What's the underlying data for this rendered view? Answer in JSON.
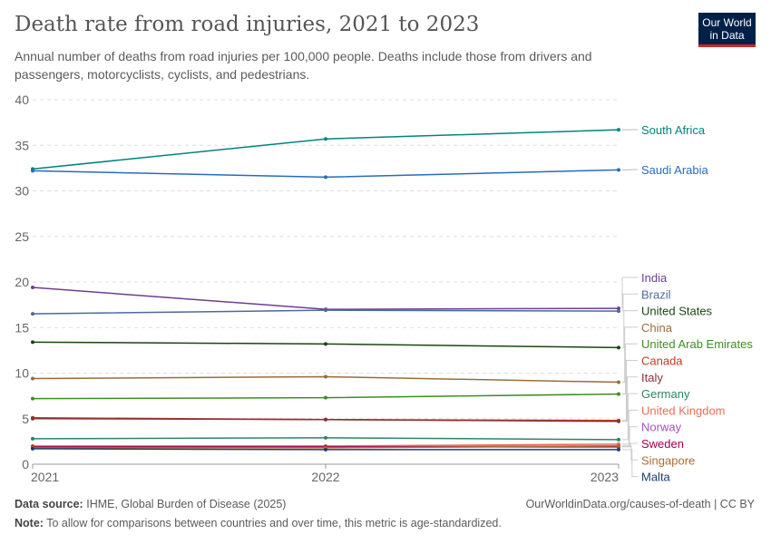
{
  "header": {
    "title": "Death rate from road injuries, 2021 to 2023",
    "subtitle": "Annual number of deaths from road injuries per 100,000 people. Deaths include those from drivers and passengers, motorcyclists, cyclists, and pedestrians.",
    "logo": "Our World in Data"
  },
  "footer": {
    "source_label": "Data source:",
    "source": "IHME, Global Burden of Disease (2025)",
    "url": "OurWorldinData.org/causes-of-death | CC BY",
    "note_label": "Note:",
    "note": "To allow for comparisons between countries and over time, this metric is age-standardized."
  },
  "chart_data": {
    "type": "line",
    "title": "Death rate from road injuries, 2021 to 2023",
    "xlabel": "",
    "ylabel": "",
    "x": [
      2021,
      2022,
      2023
    ],
    "xticks": [
      "2021",
      "2022",
      "2023"
    ],
    "ylim": [
      0,
      40
    ],
    "yticks": [
      0,
      5,
      10,
      15,
      20,
      25,
      30,
      35,
      40
    ],
    "grid": "horizontal dashed",
    "legend": "right end labels",
    "series": [
      {
        "name": "South Africa",
        "color": "#00847e",
        "values": [
          32.4,
          35.7,
          36.7
        ]
      },
      {
        "name": "Saudi Arabia",
        "color": "#286bbb",
        "values": [
          32.2,
          31.5,
          32.3
        ]
      },
      {
        "name": "India",
        "color": "#6d3e91",
        "values": [
          19.4,
          17.0,
          17.1
        ]
      },
      {
        "name": "Brazil",
        "color": "#4c6a9c",
        "values": [
          16.5,
          16.9,
          16.8
        ]
      },
      {
        "name": "United States",
        "color": "#18470f",
        "values": [
          13.4,
          13.2,
          12.8
        ]
      },
      {
        "name": "China",
        "color": "#996d39",
        "values": [
          9.4,
          9.6,
          9.0
        ]
      },
      {
        "name": "United Arab Emirates",
        "color": "#3e8f22",
        "values": [
          7.2,
          7.3,
          7.7
        ]
      },
      {
        "name": "Canada",
        "color": "#c0391b",
        "values": [
          5.1,
          4.9,
          4.8
        ]
      },
      {
        "name": "Italy",
        "color": "#883039",
        "values": [
          5.0,
          4.9,
          4.7
        ]
      },
      {
        "name": "Germany",
        "color": "#2c8465",
        "values": [
          2.8,
          2.9,
          2.7
        ]
      },
      {
        "name": "United Kingdom",
        "color": "#e56e5a",
        "values": [
          2.0,
          2.0,
          2.2
        ]
      },
      {
        "name": "Norway",
        "color": "#a652ba",
        "values": [
          1.8,
          1.9,
          2.0
        ]
      },
      {
        "name": "Sweden",
        "color": "#a2004f",
        "values": [
          1.9,
          1.9,
          1.9
        ]
      },
      {
        "name": "Singapore",
        "color": "#b16a34",
        "values": [
          1.8,
          1.8,
          2.0
        ]
      },
      {
        "name": "Malta",
        "color": "#1a3e6e",
        "values": [
          1.7,
          1.6,
          1.6
        ]
      }
    ]
  }
}
